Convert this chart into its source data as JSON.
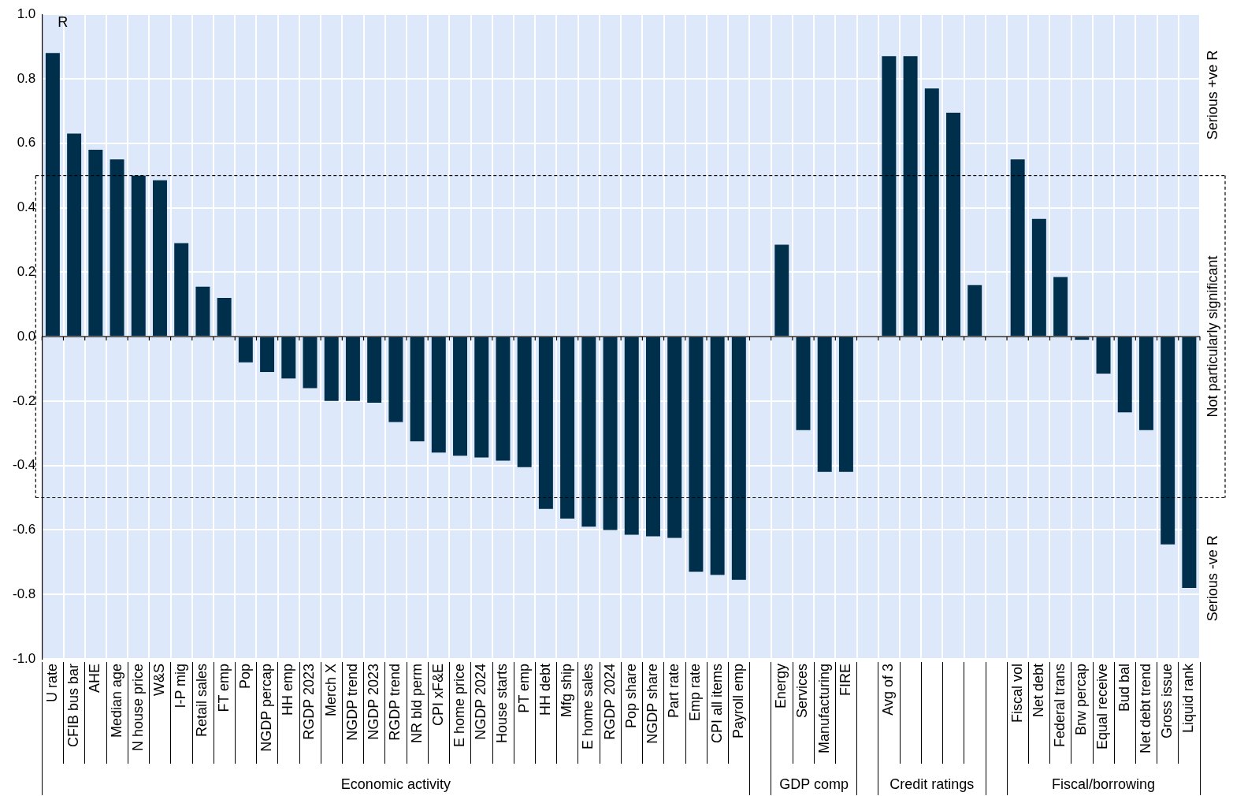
{
  "chart_data": {
    "type": "bar",
    "ylabel": "R",
    "categories": [
      "U rate",
      "CFIB bus bar",
      "AHE",
      "Median age",
      "N house price",
      "W&S",
      "I-P mig",
      "Retail sales",
      "FT emp",
      "Pop",
      "NGDP percap",
      "HH emp",
      "RGDP 2023",
      "Merch X",
      "NGDP trend",
      "NGDP 2023",
      "RGDP trend",
      "NR bld perm",
      "CPI xF&E",
      "E home price",
      "NGDP 2024",
      "House starts",
      "PT emp",
      "HH debt",
      "Mfg ship",
      "E home sales",
      "RGDP 2024",
      "Pop share",
      "NGDP share",
      "Part rate",
      "Emp rate",
      "CPI all items",
      "Payroll emp",
      null,
      "Energy",
      "Services",
      "Manufacturing",
      "FIRE",
      null,
      "Avg of 3",
      null,
      null,
      null,
      null,
      null,
      "Fiscal vol",
      "Net debt",
      "Federal trans",
      "Brw percap",
      "Equal receive",
      "Bud bal",
      "Net debt trend",
      "Gross issue",
      "Liquid rank"
    ],
    "values": [
      0.88,
      0.63,
      0.58,
      0.55,
      0.5,
      0.485,
      0.29,
      0.155,
      0.12,
      -0.08,
      -0.11,
      -0.13,
      -0.16,
      -0.2,
      -0.2,
      -0.205,
      -0.265,
      -0.325,
      -0.36,
      -0.37,
      -0.375,
      -0.385,
      -0.405,
      -0.535,
      -0.565,
      -0.59,
      -0.6,
      -0.615,
      -0.62,
      -0.625,
      -0.73,
      -0.74,
      -0.755,
      null,
      0.285,
      -0.29,
      -0.42,
      -0.42,
      null,
      0.87,
      0.87,
      0.77,
      0.695,
      0.16,
      null,
      0.55,
      0.365,
      0.185,
      -0.01,
      -0.115,
      -0.235,
      -0.29,
      -0.645,
      -0.78
    ],
    "color": "#002f4c",
    "ylim": [
      -1,
      1
    ],
    "yticks": [
      {
        "value": -1,
        "label": "-1.0"
      },
      {
        "value": -0.8,
        "label": "-0.8"
      },
      {
        "value": -0.6,
        "label": "-0.6"
      },
      {
        "value": -0.4,
        "label": "-0.4"
      },
      {
        "value": -0.2,
        "label": "-0.2"
      },
      {
        "value": 0,
        "label": "0.0"
      },
      {
        "value": 0.2,
        "label": "0.2"
      },
      {
        "value": 0.4,
        "label": "0.4"
      },
      {
        "value": 0.6,
        "label": "0.6"
      },
      {
        "value": 0.8,
        "label": "0.8"
      },
      {
        "value": 1,
        "label": "1.0"
      }
    ],
    "grid": true,
    "ref_lines": [
      {
        "axis": "y",
        "value": 0.5,
        "line_style": "dashed"
      },
      {
        "axis": "y",
        "value": -0.5,
        "line_style": "dashed"
      }
    ],
    "annotations": [
      "Economic activity",
      "GDP comp",
      "Credit ratings",
      "Fiscal/borrowing",
      "Serious +ve R",
      "Not particularly significant",
      "Serious -ve R"
    ]
  }
}
